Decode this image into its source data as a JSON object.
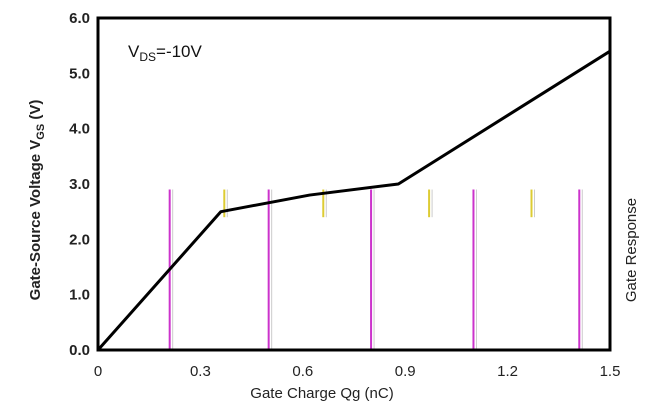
{
  "chart_data": {
    "type": "line",
    "title": "",
    "xlabel": "Gate Charge Qg (nC)",
    "ylabel": "Gate-Source Voltage V",
    "ylabel_sub": "GS",
    "ylabel_unit": " (V)",
    "ylabel_right": "Gate Response",
    "xlim": [
      0,
      1.5
    ],
    "ylim": [
      0,
      6
    ],
    "x_ticks": [
      "0",
      "0.3",
      "0.6",
      "0.9",
      "1.2",
      "1.5"
    ],
    "y_ticks": [
      "0.0",
      "1.0",
      "2.0",
      "3.0",
      "4.0",
      "5.0",
      "6.0"
    ],
    "grid": false,
    "annotation": {
      "prefix": "V",
      "sub": "DS",
      "suffix": "=-10V"
    },
    "series": [
      {
        "x": [
          0,
          0.36,
          0.62,
          0.88,
          1.5
        ],
        "y": [
          0,
          2.5,
          2.8,
          3.0,
          5.4
        ]
      }
    ],
    "colors": {
      "line": "#000000",
      "vline_magenta": "#cc33cc",
      "vline_yellow": "#ddcc33",
      "vline_gray": "#cccccc"
    },
    "vertical_markers": [
      {
        "x": 0.21,
        "color": "magenta"
      },
      {
        "x": 0.37,
        "color": "yellow"
      },
      {
        "x": 0.5,
        "color": "magenta"
      },
      {
        "x": 0.66,
        "color": "yellow"
      },
      {
        "x": 0.8,
        "color": "magenta"
      },
      {
        "x": 0.97,
        "color": "yellow"
      },
      {
        "x": 1.1,
        "color": "magenta"
      },
      {
        "x": 1.27,
        "color": "yellow"
      },
      {
        "x": 1.41,
        "color": "magenta"
      }
    ]
  }
}
